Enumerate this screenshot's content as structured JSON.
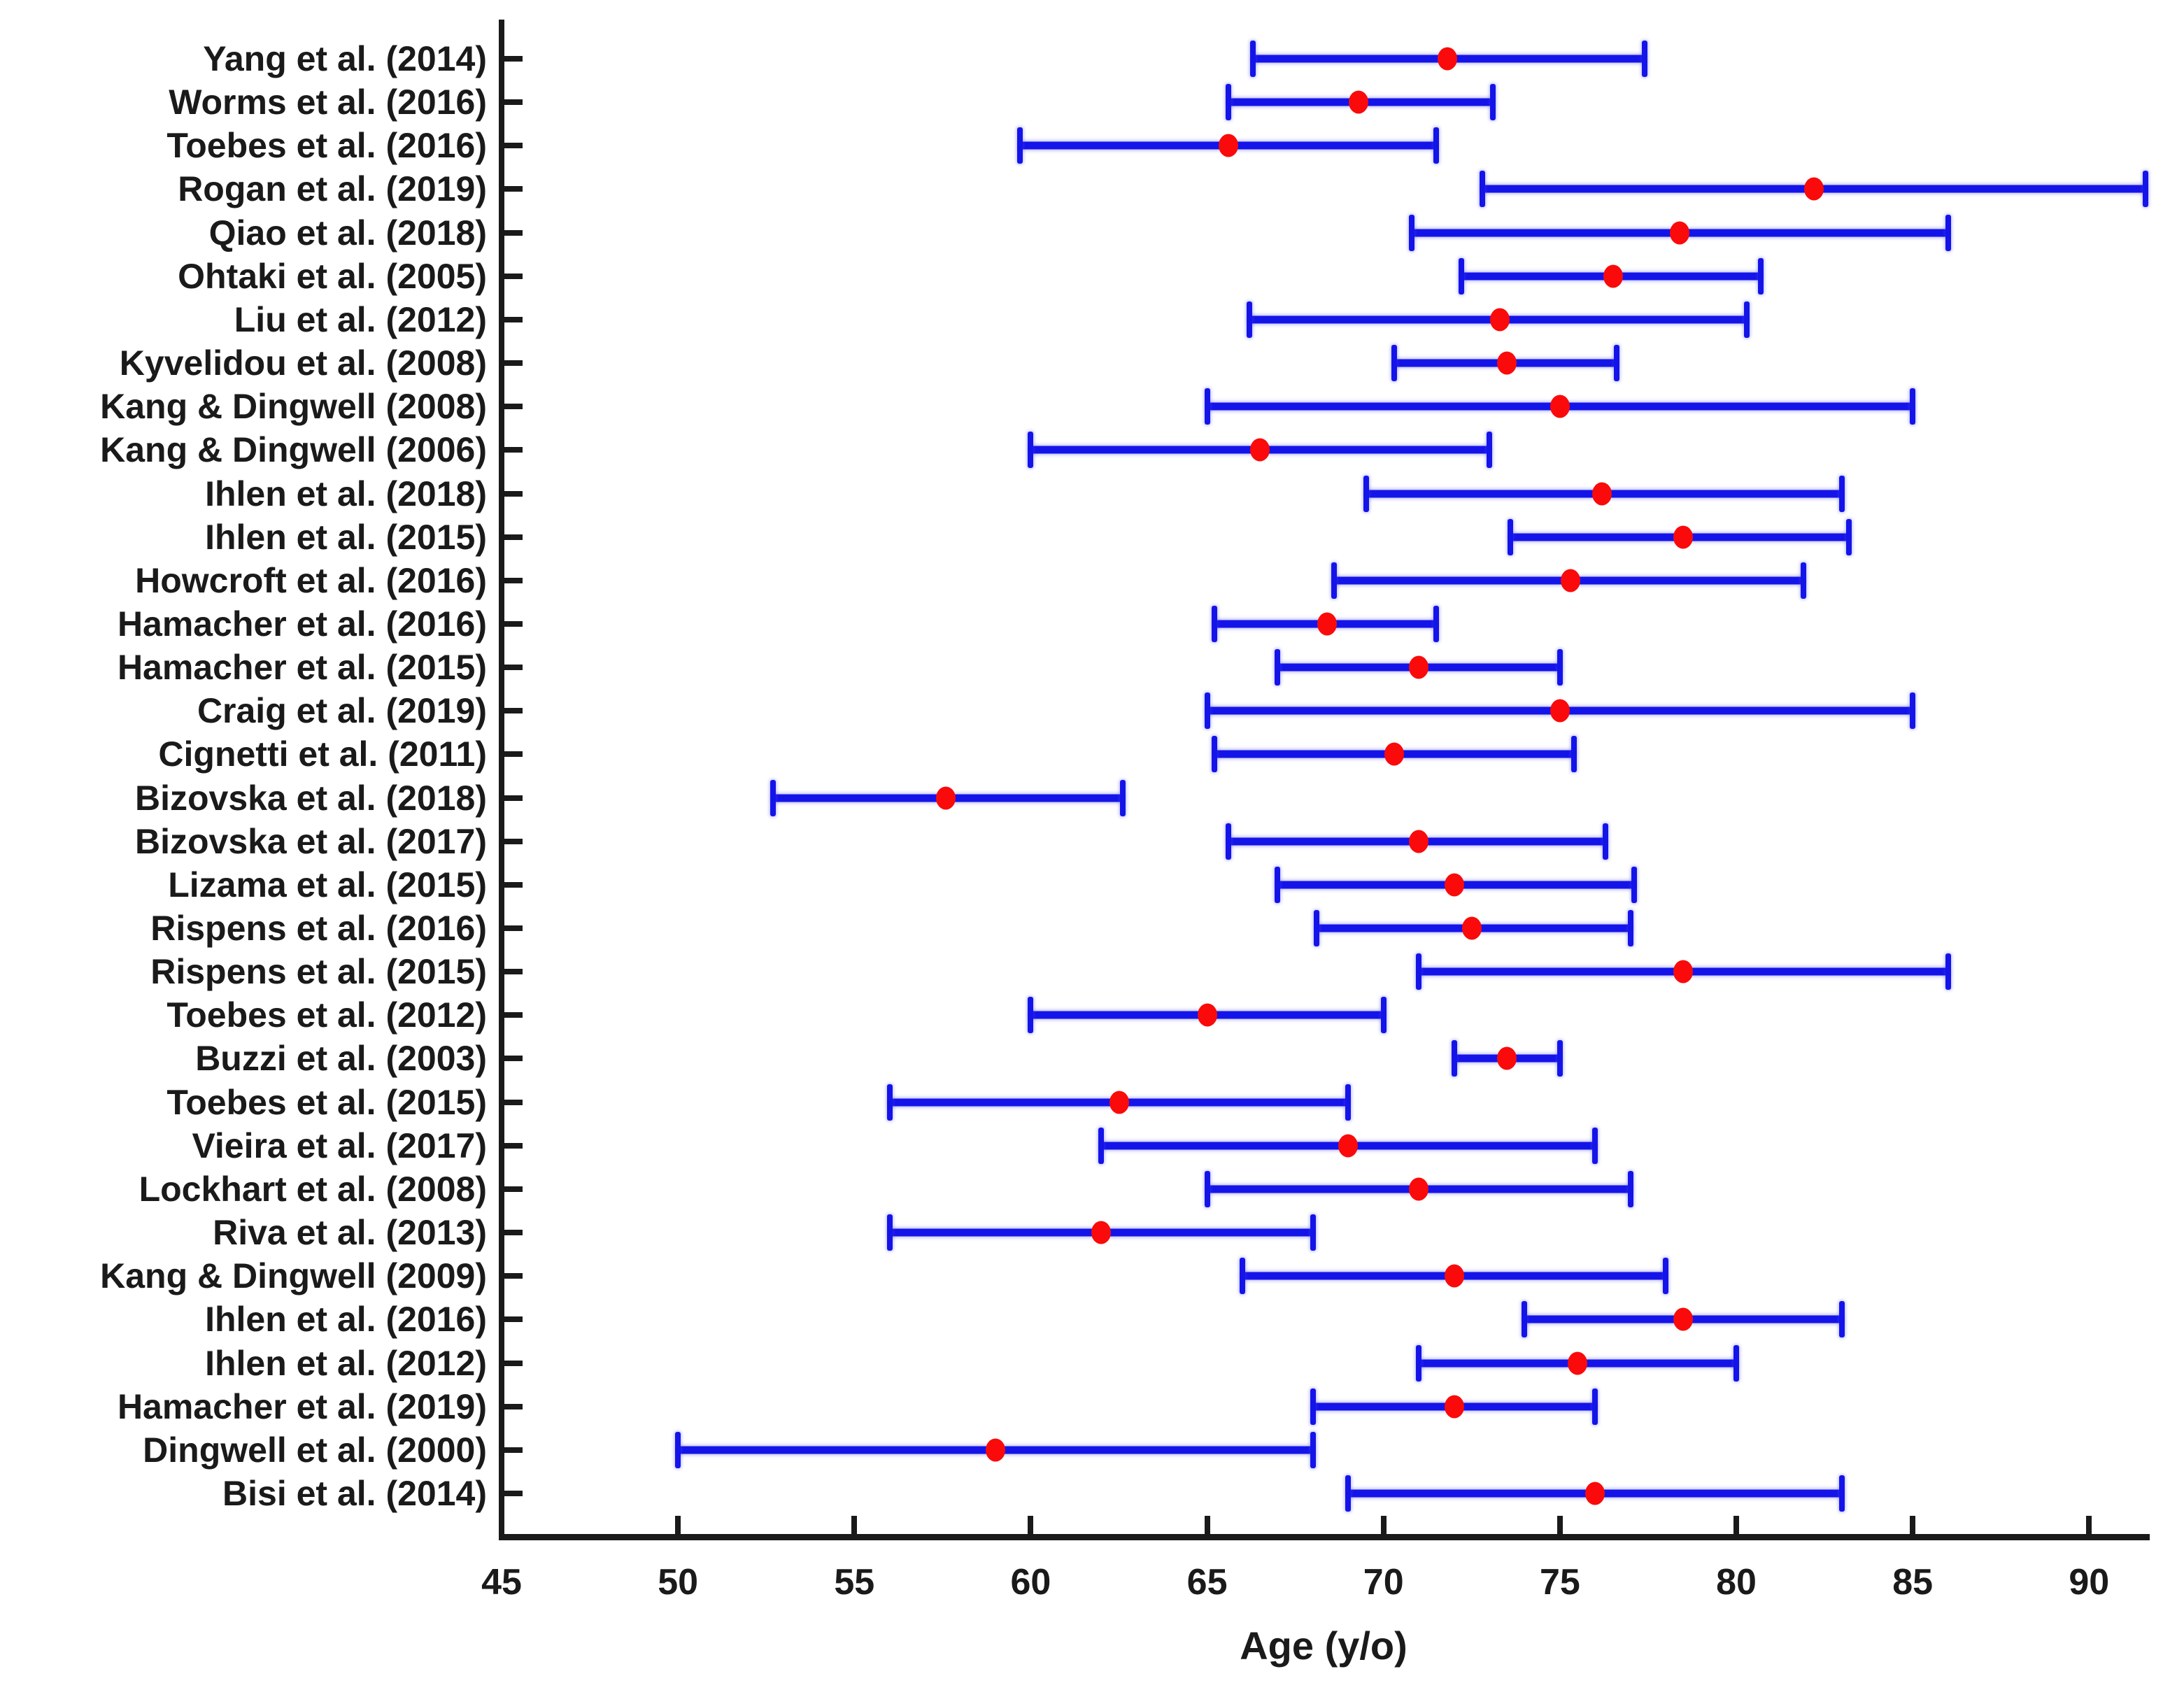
{
  "chart_data": {
    "type": "errorbar",
    "orientation": "horizontal",
    "title": "",
    "xlabel": "Age (y/o)",
    "ylabel": "",
    "xlim": [
      45,
      91.6
    ],
    "xticks": [
      45,
      50,
      55,
      60,
      65,
      70,
      75,
      80,
      85,
      90
    ],
    "grid": false,
    "legend": "none",
    "bar_color": "#1414E8",
    "marker_color": "#FA0A0A",
    "axis_color": "#1A1A1A",
    "marker_shape": "filled-circle",
    "studies": [
      {
        "label": "Yang et al. (2014)",
        "min": 66.3,
        "mean": 71.8,
        "max": 77.4
      },
      {
        "label": "Worms et al. (2016)",
        "min": 65.6,
        "mean": 69.3,
        "max": 73.1
      },
      {
        "label": "Toebes et al. (2016)",
        "min": 59.7,
        "mean": 65.6,
        "max": 71.5
      },
      {
        "label": "Rogan et al. (2019)",
        "min": 72.8,
        "mean": 82.2,
        "max": 91.6
      },
      {
        "label": "Qiao et al. (2018)",
        "min": 70.8,
        "mean": 78.4,
        "max": 86.0
      },
      {
        "label": "Ohtaki et al. (2005)",
        "min": 72.2,
        "mean": 76.5,
        "max": 80.7
      },
      {
        "label": "Liu et al. (2012)",
        "min": 66.2,
        "mean": 73.3,
        "max": 80.3
      },
      {
        "label": "Kyvelidou et al. (2008)",
        "min": 70.3,
        "mean": 73.5,
        "max": 76.6
      },
      {
        "label": "Kang & Dingwell (2008)",
        "min": 65.0,
        "mean": 75.0,
        "max": 85.0
      },
      {
        "label": "Kang & Dingwell (2006)",
        "min": 60.0,
        "mean": 66.5,
        "max": 73.0
      },
      {
        "label": "Ihlen et al. (2018)",
        "min": 69.5,
        "mean": 76.2,
        "max": 83.0
      },
      {
        "label": "Ihlen et al. (2015)",
        "min": 73.6,
        "mean": 78.5,
        "max": 83.2
      },
      {
        "label": "Howcroft et al. (2016)",
        "min": 68.6,
        "mean": 75.3,
        "max": 81.9
      },
      {
        "label": "Hamacher et al. (2016)",
        "min": 65.2,
        "mean": 68.4,
        "max": 71.5
      },
      {
        "label": "Hamacher et al. (2015)",
        "min": 67.0,
        "mean": 71.0,
        "max": 75.0
      },
      {
        "label": "Craig et al. (2019)",
        "min": 65.0,
        "mean": 75.0,
        "max": 85.0
      },
      {
        "label": "Cignetti et al. (2011)",
        "min": 65.2,
        "mean": 70.3,
        "max": 75.4
      },
      {
        "label": "Bizovska et al. (2018)",
        "min": 52.7,
        "mean": 57.6,
        "max": 62.6
      },
      {
        "label": "Bizovska et al. (2017)",
        "min": 65.6,
        "mean": 71.0,
        "max": 76.3
      },
      {
        "label": "Lizama et al. (2015)",
        "min": 67.0,
        "mean": 72.0,
        "max": 77.1
      },
      {
        "label": "Rispens et al. (2016)",
        "min": 68.1,
        "mean": 72.5,
        "max": 77.0
      },
      {
        "label": "Rispens et al. (2015)",
        "min": 71.0,
        "mean": 78.5,
        "max": 86.0
      },
      {
        "label": "Toebes et al. (2012)",
        "min": 60.0,
        "mean": 65.0,
        "max": 70.0
      },
      {
        "label": "Buzzi et al. (2003)",
        "min": 72.0,
        "mean": 73.5,
        "max": 75.0
      },
      {
        "label": "Toebes et al. (2015)",
        "min": 56.0,
        "mean": 62.5,
        "max": 69.0
      },
      {
        "label": "Vieira et al. (2017)",
        "min": 62.0,
        "mean": 69.0,
        "max": 76.0
      },
      {
        "label": "Lockhart et al. (2008)",
        "min": 65.0,
        "mean": 71.0,
        "max": 77.0
      },
      {
        "label": "Riva et al. (2013)",
        "min": 56.0,
        "mean": 62.0,
        "max": 68.0
      },
      {
        "label": "Kang & Dingwell (2009)",
        "min": 66.0,
        "mean": 72.0,
        "max": 78.0
      },
      {
        "label": "Ihlen et al. (2016)",
        "min": 74.0,
        "mean": 78.5,
        "max": 83.0
      },
      {
        "label": "Ihlen et al. (2012)",
        "min": 71.0,
        "mean": 75.5,
        "max": 80.0
      },
      {
        "label": "Hamacher et al. (2019)",
        "min": 68.0,
        "mean": 72.0,
        "max": 76.0
      },
      {
        "label": "Dingwell et al. (2000)",
        "min": 50.0,
        "mean": 59.0,
        "max": 68.0
      },
      {
        "label": "Bisi et al. (2014)",
        "min": 69.0,
        "mean": 76.0,
        "max": 83.0
      }
    ]
  }
}
